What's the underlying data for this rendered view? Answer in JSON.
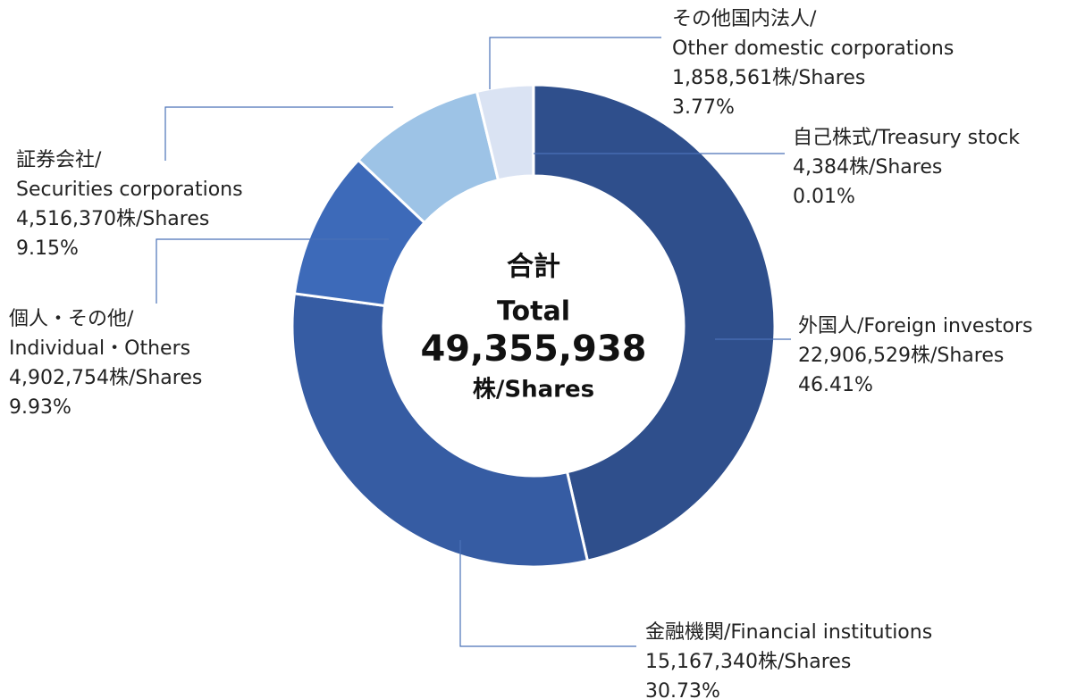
{
  "chart_data": {
    "type": "donut",
    "categories": [
      [
        "外国人/Foreign investors"
      ],
      [
        "金融機関/Financial institutions"
      ],
      [
        "個人・その他/",
        "Individual・Others"
      ],
      [
        "証券会社/",
        "Securities corporations"
      ],
      [
        "その他国内法人/",
        "Other domestic corporations"
      ],
      [
        "自己株式/Treasury stock"
      ]
    ],
    "share_labels": [
      "22,906,529株/Shares",
      "15,167,340株/Shares",
      "4,902,754株/Shares",
      "4,516,370株/Shares",
      "1,858,561株/Shares",
      "4,384株/Shares"
    ],
    "values": [
      46.41,
      30.73,
      9.93,
      9.15,
      3.77,
      0.01
    ],
    "value_labels": [
      "46.41%",
      "30.73%",
      "9.93%",
      "9.15%",
      "3.77%",
      "0.01%"
    ],
    "colors": [
      "#2f4f8c",
      "#365ca3",
      "#3d6ab9",
      "#9dc3e6",
      "#dae3f3",
      "#c5d3ee"
    ],
    "center_label": [
      "合計",
      "Total",
      "49,355,938",
      "株/Shares"
    ]
  }
}
